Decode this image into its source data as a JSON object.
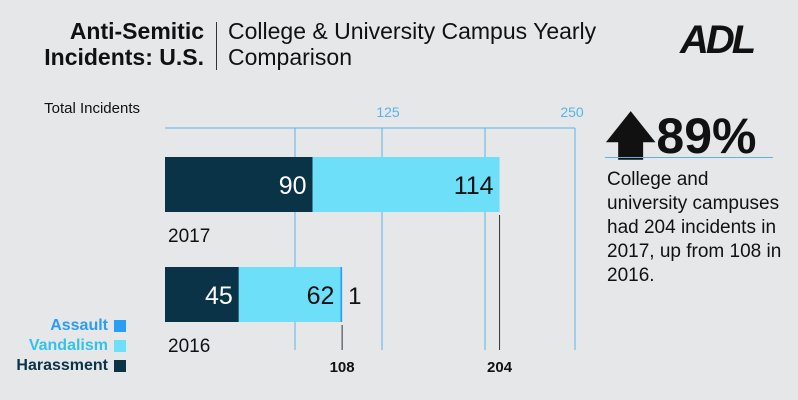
{
  "header": {
    "title": "Anti-Semitic Incidents: U.S.",
    "subtitle": "College & University Campus Yearly Comparison",
    "logo": "ADL"
  },
  "stat": {
    "value": "89%",
    "arrow_icon": "up-arrow-icon",
    "description": "College and university campuses had 204 incidents in 2017, up from 108 in 2016."
  },
  "colors": {
    "Harassment": "#0b3347",
    "Vandalism": "#6ddff8",
    "Assault": "#2a9df4",
    "axis": "#5ab3e6"
  },
  "chart_data": {
    "type": "bar",
    "orientation": "horizontal",
    "stacked": true,
    "ylabel": "Total Incidents",
    "xlim": [
      0,
      250
    ],
    "xticks": [
      "125",
      "250"
    ],
    "categories": [
      "2017",
      "2016"
    ],
    "series": [
      {
        "name": "Harassment",
        "values": [
          90,
          45
        ],
        "labels": [
          "90",
          "45"
        ]
      },
      {
        "name": "Vandalism",
        "values": [
          114,
          62
        ],
        "labels": [
          "114",
          "62"
        ]
      },
      {
        "name": "Assault",
        "values": [
          0,
          1
        ],
        "labels": [
          "",
          "1"
        ]
      }
    ],
    "totals": [
      "204",
      "108"
    ],
    "legend": "bottom-left"
  }
}
